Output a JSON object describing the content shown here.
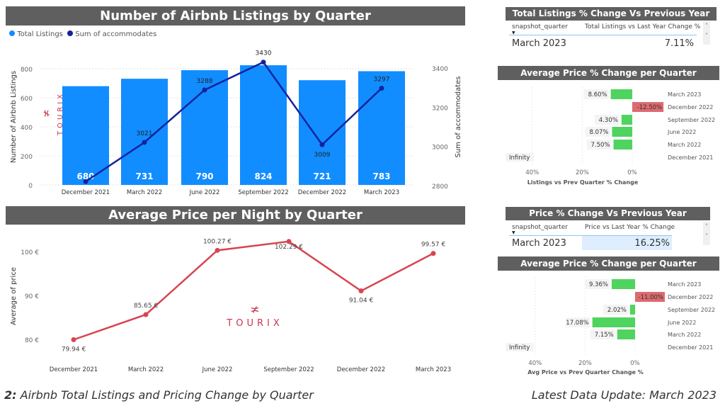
{
  "colors": {
    "banner": "#5f5f5f",
    "bar": "#118dff",
    "line": "#12239e",
    "price_line": "#d64550",
    "pos": "#4fd45f",
    "neg": "#dd6b70"
  },
  "logo_text": "TOURIX",
  "listings_chart": {
    "title": "Number of Airbnb Listings by Quarter",
    "chart_data": {
      "type": "bar+line",
      "categories": [
        "December 2021",
        "March 2022",
        "June 2022",
        "September 2022",
        "December 2022",
        "March 2023"
      ],
      "series": [
        {
          "name": "Total Listings",
          "values": [
            680,
            731,
            790,
            824,
            721,
            783
          ]
        },
        {
          "name": "Sum of accommodates",
          "values": [
            2821,
            3021,
            3288,
            3430,
            3009,
            3297
          ]
        }
      ],
      "ylabel": "Number of Airbnb Listings",
      "y2label": "Sum of accommodates",
      "ylim": [
        0,
        800
      ],
      "y2lim": [
        2800,
        3400
      ],
      "yticks": [
        "0",
        "200",
        "400",
        "600",
        "800"
      ],
      "y2ticks": [
        "2800",
        "3000",
        "3200",
        "3400"
      ],
      "line_labels": [
        "",
        "3021",
        "3288",
        "3430",
        "3009",
        "3297"
      ],
      "legend": "top-left"
    }
  },
  "price_chart": {
    "title": "Average Price per Night by Quarter",
    "chart_data": {
      "type": "line",
      "categories": [
        "December 2021",
        "March 2022",
        "June 2022",
        "September 2022",
        "December 2022",
        "March 2023"
      ],
      "values": [
        79.94,
        85.65,
        100.27,
        102.29,
        91.04,
        99.57
      ],
      "labels": [
        "79.94 €",
        "85.65 €",
        "100.27 €",
        "102.29 €",
        "91.04 €",
        "99.57 €"
      ],
      "ylabel": "Average of price",
      "ylim": [
        78,
        104
      ],
      "yticks": [
        {
          "v": 80,
          "t": "80 €"
        },
        {
          "v": 90,
          "t": "90 €"
        },
        {
          "v": 100,
          "t": "100 €"
        }
      ]
    }
  },
  "listings_yoy": {
    "title": "Total Listings % Change Vs Previous Year",
    "col1": "snapshot_quarter",
    "col2": "Total Listings vs Last Year Change %",
    "row_quarter": "March 2023",
    "row_value": "7.11%"
  },
  "listings_qoq": {
    "title": "Average Price % Change per Quarter",
    "chart_data": {
      "type": "bar",
      "categories": [
        "March 2023",
        "December 2022",
        "September 2022",
        "June 2022",
        "March 2022",
        "December 2021"
      ],
      "values": [
        8.6,
        -12.5,
        4.3,
        8.07,
        7.5,
        null
      ],
      "labels": [
        "8.60%",
        "-12.50%",
        "4.30%",
        "8.07%",
        "7.50%",
        "Infinity"
      ],
      "xticks": [
        "40%",
        "20%",
        "0%"
      ],
      "xlabel": "Listings vs Prev Quarter % Change"
    }
  },
  "price_yoy": {
    "title": "Price % Change Vs Previous Year",
    "col1": "snapshot_quarter",
    "col2": "Price vs Last Year % Change",
    "row_quarter": "March 2023",
    "row_value": "16.25%"
  },
  "price_qoq": {
    "title": "Average Price % Change per Quarter",
    "chart_data": {
      "type": "bar",
      "categories": [
        "March 2023",
        "December 2022",
        "September 2022",
        "June 2022",
        "March 2022",
        "December 2021"
      ],
      "values": [
        9.36,
        -11.0,
        2.02,
        17.08,
        7.15,
        null
      ],
      "labels": [
        "9.36%",
        "-11.00%",
        "2.02%",
        "17.08%",
        "7.15%",
        "Infinity"
      ],
      "xticks": [
        "40%",
        "20%",
        "0%"
      ],
      "xlabel": "Avg Price vs Prev Quarter Change %"
    }
  },
  "footer": {
    "number": "2:",
    "caption": " Airbnb Total Listings and Pricing Change by Quarter",
    "update": "Latest Data Update: March 2023"
  }
}
